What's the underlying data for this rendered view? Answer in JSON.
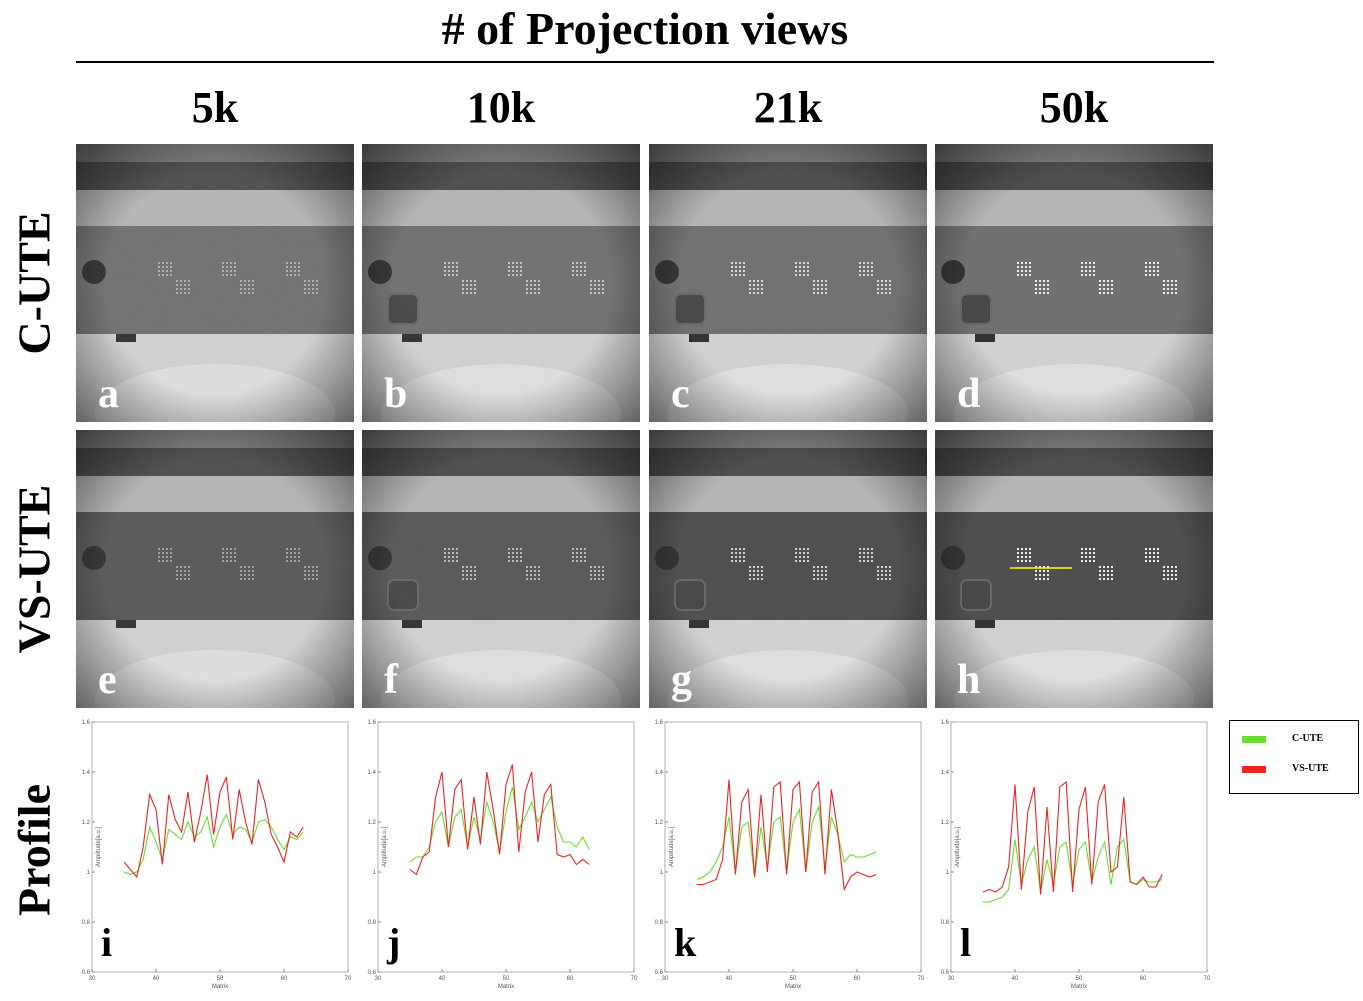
{
  "title": "# of Projection views",
  "columns": [
    "5k",
    "10k",
    "21k",
    "50k"
  ],
  "rows": [
    "C-UTE",
    "VS-UTE",
    "Profile"
  ],
  "panels": {
    "cute": [
      "a",
      "b",
      "c",
      "d"
    ],
    "vsute": [
      "e",
      "f",
      "g",
      "h"
    ],
    "profile": [
      "i",
      "j",
      "k",
      "l"
    ]
  },
  "legend": {
    "cute": "C-UTE",
    "vsute": "VS-UTE"
  },
  "colors": {
    "cute": "#66dd33",
    "vsute": "#ee2222",
    "profile_line": "#ffff00"
  },
  "axis": {
    "xlabel": "Matrix",
    "ylabel": "Amplitude[a.u.]"
  },
  "chart_data": {
    "type": "line",
    "xlabel": "Matrix",
    "ylabel": "Amplitude[a.u.]",
    "xlim": [
      30,
      70
    ],
    "ylim": [
      0.6,
      1.6
    ],
    "xticks": [
      30,
      40,
      50,
      60,
      70
    ],
    "yticks": [
      0.6,
      0.8,
      1.0,
      1.2,
      1.4,
      1.6
    ],
    "x": [
      35,
      36,
      37,
      38,
      39,
      40,
      41,
      42,
      43,
      44,
      45,
      46,
      47,
      48,
      49,
      50,
      51,
      52,
      53,
      54,
      55,
      56,
      57,
      58,
      59,
      60,
      61,
      62,
      63
    ],
    "panels": [
      {
        "label": "i",
        "views": "5k",
        "series": [
          {
            "name": "C-UTE",
            "values": [
              1.0,
              0.99,
              1.0,
              1.05,
              1.18,
              1.12,
              1.05,
              1.17,
              1.15,
              1.13,
              1.2,
              1.14,
              1.16,
              1.22,
              1.1,
              1.18,
              1.23,
              1.15,
              1.18,
              1.17,
              1.12,
              1.2,
              1.21,
              1.18,
              1.13,
              1.09,
              1.14,
              1.13,
              1.16
            ]
          },
          {
            "name": "VS-UTE",
            "values": [
              1.04,
              1.01,
              0.98,
              1.1,
              1.31,
              1.25,
              1.03,
              1.31,
              1.21,
              1.16,
              1.32,
              1.12,
              1.24,
              1.39,
              1.15,
              1.32,
              1.38,
              1.13,
              1.33,
              1.2,
              1.11,
              1.37,
              1.28,
              1.15,
              1.1,
              1.04,
              1.16,
              1.14,
              1.18
            ]
          }
        ]
      },
      {
        "label": "j",
        "views": "10k",
        "series": [
          {
            "name": "C-UTE",
            "values": [
              1.04,
              1.06,
              1.06,
              1.1,
              1.2,
              1.24,
              1.1,
              1.22,
              1.25,
              1.1,
              1.22,
              1.13,
              1.28,
              1.2,
              1.08,
              1.24,
              1.34,
              1.17,
              1.22,
              1.28,
              1.2,
              1.25,
              1.3,
              1.18,
              1.12,
              1.12,
              1.1,
              1.14,
              1.09
            ]
          },
          {
            "name": "VS-UTE",
            "values": [
              1.01,
              0.99,
              1.06,
              1.08,
              1.3,
              1.4,
              1.1,
              1.33,
              1.37,
              1.09,
              1.3,
              1.11,
              1.4,
              1.25,
              1.07,
              1.35,
              1.43,
              1.08,
              1.32,
              1.4,
              1.12,
              1.31,
              1.35,
              1.07,
              1.06,
              1.07,
              1.03,
              1.05,
              1.03
            ]
          }
        ]
      },
      {
        "label": "k",
        "views": "21k",
        "series": [
          {
            "name": "C-UTE",
            "values": [
              0.97,
              0.98,
              1.0,
              1.04,
              1.1,
              1.22,
              1.0,
              1.18,
              1.2,
              0.98,
              1.18,
              1.02,
              1.2,
              1.22,
              1.0,
              1.2,
              1.25,
              1.0,
              1.2,
              1.26,
              1.02,
              1.22,
              1.15,
              1.04,
              1.07,
              1.06,
              1.06,
              1.07,
              1.08
            ]
          },
          {
            "name": "VS-UTE",
            "values": [
              0.95,
              0.95,
              0.96,
              0.97,
              1.05,
              1.37,
              0.99,
              1.28,
              1.33,
              0.98,
              1.31,
              1.0,
              1.34,
              1.36,
              0.99,
              1.33,
              1.36,
              1.0,
              1.32,
              1.36,
              0.99,
              1.33,
              1.16,
              0.93,
              0.98,
              1.0,
              0.99,
              0.98,
              0.99
            ]
          }
        ]
      },
      {
        "label": "l",
        "views": "50k",
        "series": [
          {
            "name": "C-UTE",
            "values": [
              0.88,
              0.88,
              0.89,
              0.9,
              0.93,
              1.13,
              0.95,
              1.05,
              1.1,
              0.92,
              1.05,
              0.95,
              1.1,
              1.12,
              0.95,
              1.09,
              1.12,
              0.96,
              1.06,
              1.12,
              0.95,
              1.1,
              1.13,
              0.96,
              0.95,
              0.97,
              0.96,
              0.96,
              0.97
            ]
          },
          {
            "name": "VS-UTE",
            "values": [
              0.92,
              0.93,
              0.92,
              0.94,
              1.02,
              1.35,
              0.93,
              1.24,
              1.34,
              0.91,
              1.26,
              0.92,
              1.34,
              1.36,
              0.92,
              1.25,
              1.34,
              0.95,
              1.28,
              1.35,
              1.0,
              1.02,
              1.3,
              0.96,
              0.95,
              0.98,
              0.94,
              0.94,
              0.99
            ]
          }
        ]
      }
    ]
  }
}
